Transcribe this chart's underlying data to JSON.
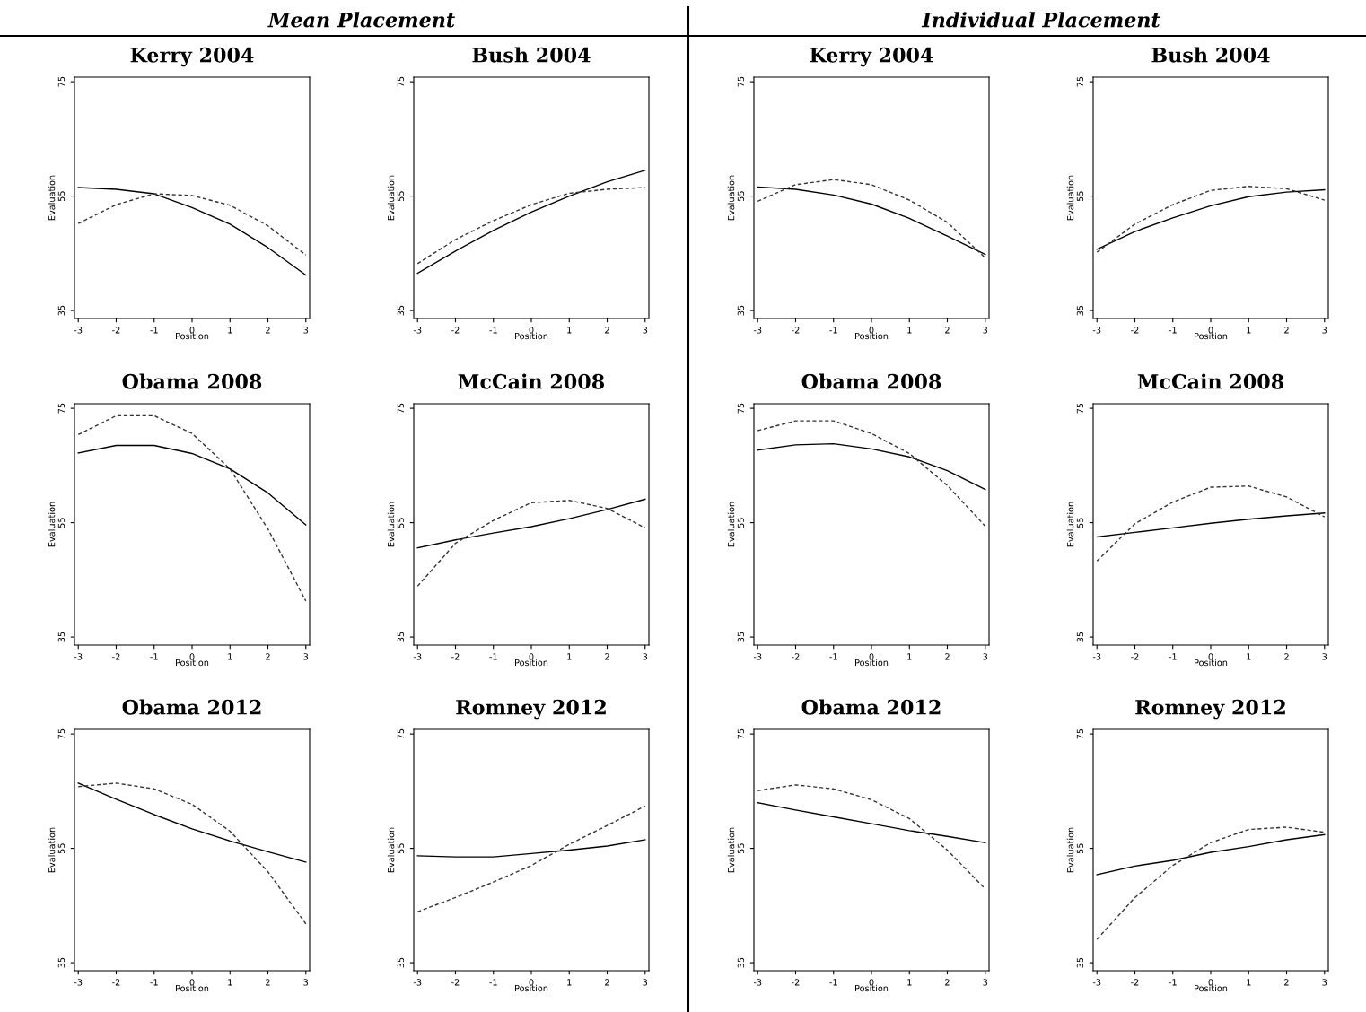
{
  "chart_data": [
    {
      "type": "line",
      "title": "Kerry 2004",
      "xlabel": "Position",
      "ylabel": "Evaluation",
      "annotations": [
        "Mean Placement"
      ],
      "x": [
        -3,
        -2,
        -1,
        0,
        1,
        2,
        3
      ],
      "xlim": [
        -3.1,
        3.1
      ],
      "ylim": [
        33.6,
        75.8
      ],
      "xticks": [
        -3,
        -2,
        -1,
        0,
        1,
        2,
        3
      ],
      "yticks": [
        35,
        55,
        75
      ],
      "series": [
        {
          "color": "#000000",
          "line_style": "solid",
          "values": [
            56.5,
            56.2,
            55.4,
            53.0,
            50.1,
            46.0,
            41.2
          ]
        },
        {
          "color": "#333333",
          "line_style": "dashed",
          "values": [
            50.2,
            53.5,
            55.4,
            55.1,
            53.4,
            49.8,
            44.7
          ]
        }
      ]
    },
    {
      "type": "line",
      "title": "Bush 2004",
      "xlabel": "Position",
      "ylabel": "Evaluation",
      "x": [
        -3,
        -2,
        -1,
        0,
        1,
        2,
        3
      ],
      "xlim": [
        -3.1,
        3.1
      ],
      "ylim": [
        33.6,
        75.8
      ],
      "xticks": [
        -3,
        -2,
        -1,
        0,
        1,
        2,
        3
      ],
      "yticks": [
        35,
        55,
        75
      ],
      "series": [
        {
          "color": "#000000",
          "line_style": "solid",
          "values": [
            41.5,
            45.4,
            49.0,
            52.2,
            55.0,
            57.5,
            59.5
          ]
        },
        {
          "color": "#333333",
          "line_style": "dashed",
          "values": [
            43.2,
            47.4,
            50.7,
            53.5,
            55.5,
            56.2,
            56.5
          ]
        }
      ]
    },
    {
      "type": "line",
      "title": "Kerry 2004",
      "xlabel": "Position",
      "ylabel": "Evaluation",
      "annotations": [
        "Individual Placement"
      ],
      "x": [
        -3,
        -2,
        -1,
        0,
        1,
        2,
        3
      ],
      "xlim": [
        -3.1,
        3.1
      ],
      "ylim": [
        33.6,
        75.8
      ],
      "xticks": [
        -3,
        -2,
        -1,
        0,
        1,
        2,
        3
      ],
      "yticks": [
        35,
        55,
        75
      ],
      "series": [
        {
          "color": "#000000",
          "line_style": "solid",
          "values": [
            56.6,
            56.2,
            55.2,
            53.6,
            51.1,
            48.0,
            44.8
          ]
        },
        {
          "color": "#333333",
          "line_style": "dashed",
          "values": [
            54.1,
            57.0,
            57.9,
            57.0,
            54.3,
            50.4,
            44.2
          ]
        }
      ]
    },
    {
      "type": "line",
      "title": "Bush 2004",
      "xlabel": "Position",
      "ylabel": "Evaluation",
      "x": [
        -3,
        -2,
        -1,
        0,
        1,
        2,
        3
      ],
      "xlim": [
        -3.1,
        3.1
      ],
      "ylim": [
        33.6,
        75.8
      ],
      "xticks": [
        -3,
        -2,
        -1,
        0,
        1,
        2,
        3
      ],
      "yticks": [
        35,
        55,
        75
      ],
      "series": [
        {
          "color": "#000000",
          "line_style": "solid",
          "values": [
            45.7,
            48.8,
            51.2,
            53.3,
            54.9,
            55.7,
            56.1
          ]
        },
        {
          "color": "#333333",
          "line_style": "dashed",
          "values": [
            45.2,
            50.1,
            53.5,
            56.0,
            56.7,
            56.3,
            54.3
          ]
        }
      ]
    },
    {
      "type": "line",
      "title": "Obama 2008",
      "xlabel": "Position",
      "ylabel": "Evaluation",
      "x": [
        -3,
        -2,
        -1,
        0,
        1,
        2,
        3
      ],
      "xlim": [
        -3.1,
        3.1
      ],
      "ylim": [
        33.6,
        75.8
      ],
      "xticks": [
        -3,
        -2,
        -1,
        0,
        1,
        2,
        3
      ],
      "yticks": [
        35,
        55,
        75
      ],
      "series": [
        {
          "color": "#000000",
          "line_style": "solid",
          "values": [
            67.2,
            68.5,
            68.5,
            67.1,
            64.4,
            60.2,
            54.6
          ]
        },
        {
          "color": "#333333",
          "line_style": "dashed",
          "values": [
            70.4,
            73.7,
            73.7,
            70.6,
            64.4,
            53.9,
            41.3
          ]
        }
      ]
    },
    {
      "type": "line",
      "title": "McCain 2008",
      "xlabel": "Position",
      "ylabel": "Evaluation",
      "x": [
        -3,
        -2,
        -1,
        0,
        1,
        2,
        3
      ],
      "xlim": [
        -3.1,
        3.1
      ],
      "ylim": [
        33.6,
        75.8
      ],
      "xticks": [
        -3,
        -2,
        -1,
        0,
        1,
        2,
        3
      ],
      "yticks": [
        35,
        55,
        75
      ],
      "series": [
        {
          "color": "#000000",
          "line_style": "solid",
          "values": [
            50.6,
            52.0,
            53.2,
            54.3,
            55.7,
            57.3,
            59.1
          ]
        },
        {
          "color": "#333333",
          "line_style": "dashed",
          "values": [
            43.9,
            51.4,
            55.4,
            58.5,
            58.9,
            57.5,
            54.1
          ]
        }
      ]
    },
    {
      "type": "line",
      "title": "Obama 2008",
      "xlabel": "Position",
      "ylabel": "Evaluation",
      "x": [
        -3,
        -2,
        -1,
        0,
        1,
        2,
        3
      ],
      "xlim": [
        -3.1,
        3.1
      ],
      "ylim": [
        33.6,
        75.8
      ],
      "xticks": [
        -3,
        -2,
        -1,
        0,
        1,
        2,
        3
      ],
      "yticks": [
        35,
        55,
        75
      ],
      "series": [
        {
          "color": "#000000",
          "line_style": "solid",
          "values": [
            67.7,
            68.6,
            68.8,
            67.9,
            66.5,
            64.1,
            60.8
          ]
        },
        {
          "color": "#333333",
          "line_style": "dashed",
          "values": [
            71.1,
            72.8,
            72.8,
            70.6,
            67.1,
            61.5,
            54.4
          ]
        }
      ]
    },
    {
      "type": "line",
      "title": "McCain 2008",
      "xlabel": "Position",
      "ylabel": "Evaluation",
      "x": [
        -3,
        -2,
        -1,
        0,
        1,
        2,
        3
      ],
      "xlim": [
        -3.1,
        3.1
      ],
      "ylim": [
        33.6,
        75.8
      ],
      "xticks": [
        -3,
        -2,
        -1,
        0,
        1,
        2,
        3
      ],
      "yticks": [
        35,
        55,
        75
      ],
      "series": [
        {
          "color": "#000000",
          "line_style": "solid",
          "values": [
            52.5,
            53.3,
            54.1,
            54.9,
            55.6,
            56.2,
            56.7
          ]
        },
        {
          "color": "#333333",
          "line_style": "dashed",
          "values": [
            48.3,
            54.8,
            58.6,
            61.2,
            61.4,
            59.5,
            56.0
          ]
        }
      ]
    },
    {
      "type": "line",
      "title": "Obama 2012",
      "xlabel": "Position",
      "ylabel": "Evaluation",
      "x": [
        -3,
        -2,
        -1,
        0,
        1,
        2,
        3
      ],
      "xlim": [
        -3.1,
        3.1
      ],
      "ylim": [
        33.6,
        75.8
      ],
      "xticks": [
        -3,
        -2,
        -1,
        0,
        1,
        2,
        3
      ],
      "yticks": [
        35,
        55,
        75
      ],
      "series": [
        {
          "color": "#000000",
          "line_style": "solid",
          "values": [
            66.4,
            63.6,
            60.9,
            58.4,
            56.3,
            54.4,
            52.6
          ]
        },
        {
          "color": "#333333",
          "line_style": "dashed",
          "values": [
            65.8,
            66.4,
            65.4,
            62.7,
            58.0,
            50.9,
            41.8
          ]
        }
      ]
    },
    {
      "type": "line",
      "title": "Romney 2012",
      "xlabel": "Position",
      "ylabel": "Evaluation",
      "x": [
        -3,
        -2,
        -1,
        0,
        1,
        2,
        3
      ],
      "xlim": [
        -3.1,
        3.1
      ],
      "ylim": [
        33.6,
        75.8
      ],
      "xticks": [
        -3,
        -2,
        -1,
        0,
        1,
        2,
        3
      ],
      "yticks": [
        35,
        55,
        75
      ],
      "series": [
        {
          "color": "#000000",
          "line_style": "solid",
          "values": [
            53.7,
            53.5,
            53.5,
            54.1,
            54.7,
            55.4,
            56.5
          ]
        },
        {
          "color": "#333333",
          "line_style": "dashed",
          "values": [
            43.9,
            46.4,
            49.1,
            52.0,
            55.7,
            59.0,
            62.4
          ]
        }
      ]
    },
    {
      "type": "line",
      "title": "Obama 2012",
      "xlabel": "Position",
      "ylabel": "Evaluation",
      "x": [
        -3,
        -2,
        -1,
        0,
        1,
        2,
        3
      ],
      "xlim": [
        -3.1,
        3.1
      ],
      "ylim": [
        33.6,
        75.8
      ],
      "xticks": [
        -3,
        -2,
        -1,
        0,
        1,
        2,
        3
      ],
      "yticks": [
        35,
        55,
        75
      ],
      "series": [
        {
          "color": "#000000",
          "line_style": "solid",
          "values": [
            63.0,
            61.7,
            60.5,
            59.3,
            58.1,
            57.1,
            56.0
          ]
        },
        {
          "color": "#333333",
          "line_style": "dashed",
          "values": [
            65.1,
            66.1,
            65.4,
            63.5,
            60.2,
            54.7,
            47.9
          ]
        }
      ]
    },
    {
      "type": "line",
      "title": "Romney 2012",
      "xlabel": "Position",
      "ylabel": "Evaluation",
      "x": [
        -3,
        -2,
        -1,
        0,
        1,
        2,
        3
      ],
      "xlim": [
        -3.1,
        3.1
      ],
      "ylim": [
        33.6,
        75.8
      ],
      "xticks": [
        -3,
        -2,
        -1,
        0,
        1,
        2,
        3
      ],
      "yticks": [
        35,
        55,
        75
      ],
      "series": [
        {
          "color": "#000000",
          "line_style": "solid",
          "values": [
            50.4,
            51.9,
            52.9,
            54.3,
            55.3,
            56.5,
            57.4
          ]
        },
        {
          "color": "#333333",
          "line_style": "dashed",
          "values": [
            39.1,
            46.4,
            52.0,
            56.0,
            58.3,
            58.7,
            57.8
          ]
        }
      ]
    }
  ]
}
